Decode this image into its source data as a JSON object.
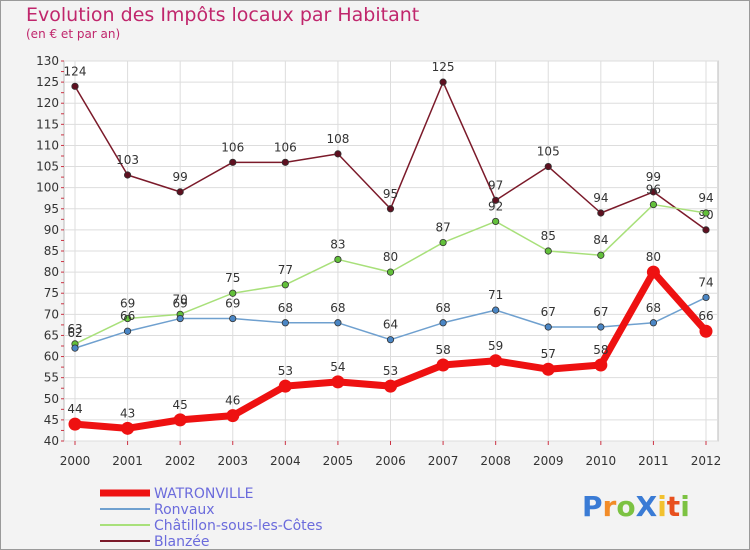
{
  "chart_data": {
    "type": "line",
    "title": "Evolution des Impôts locaux par Habitant",
    "subtitle": "(en € et par an)",
    "xlabel": "",
    "ylabel": "",
    "x": [
      "2000",
      "2001",
      "2002",
      "2003",
      "2004",
      "2005",
      "2006",
      "2007",
      "2008",
      "2009",
      "2010",
      "2011",
      "2012"
    ],
    "ylim": [
      40,
      130
    ],
    "yticks": [
      "40",
      "45",
      "50",
      "55",
      "60",
      "65",
      "70",
      "75",
      "80",
      "85",
      "90",
      "95",
      "100",
      "105",
      "110",
      "115",
      "120",
      "125",
      "130"
    ],
    "grid": true,
    "legend_position": "bottom-left",
    "series": [
      {
        "name": "Blanzée",
        "color": "#7b1a2a",
        "marker": "#5e1020",
        "values": [
          124,
          103,
          99,
          106,
          106,
          108,
          95,
          125,
          97,
          105,
          94,
          99,
          90
        ],
        "labels": [
          "124",
          "103",
          "99",
          "106",
          "106",
          "108",
          "95",
          "125",
          "97",
          "105",
          "94",
          "99",
          "90"
        ]
      },
      {
        "name": "Châtillon-sous-les-Côtes",
        "color": "#a8e07a",
        "marker": "#62c03a",
        "values": [
          63,
          69,
          70,
          75,
          77,
          83,
          80,
          87,
          92,
          85,
          84,
          96,
          94
        ],
        "labels": [
          "63",
          "69",
          "70",
          "75",
          "77",
          "83",
          "80",
          "87",
          "92",
          "85",
          "84",
          "96",
          "94"
        ]
      },
      {
        "name": "Ronvaux",
        "color": "#6fa0cf",
        "marker": "#4a86c5",
        "values": [
          62,
          66,
          69,
          69,
          68,
          68,
          64,
          68,
          71,
          67,
          67,
          68,
          74
        ],
        "labels": [
          "62",
          "66",
          "69",
          "69",
          "68",
          "68",
          "64",
          "68",
          "71",
          "67",
          "67",
          "68",
          "74"
        ]
      },
      {
        "name": "WATRONVILLE",
        "color": "#ee1111",
        "marker": "#ee1111",
        "values": [
          44,
          43,
          45,
          46,
          53,
          54,
          53,
          58,
          59,
          57,
          58,
          80,
          66
        ],
        "labels": [
          "44",
          "43",
          "45",
          "46",
          "53",
          "54",
          "53",
          "58",
          "59",
          "57",
          "58",
          "80",
          "66"
        ]
      }
    ],
    "legend": [
      "WATRONVILLE",
      "Ronvaux",
      "Châtillon-sous-les-Côtes",
      "Blanzée"
    ]
  },
  "logo": {
    "text": "ProXiti",
    "letters": [
      "P",
      "r",
      "o",
      "X",
      "i",
      "t",
      "i"
    ],
    "colors": [
      "#3a7bd5",
      "#f28c28",
      "#7cc242",
      "#3a7bd5",
      "#f2c12e",
      "#e8501e",
      "#7cc242"
    ]
  }
}
